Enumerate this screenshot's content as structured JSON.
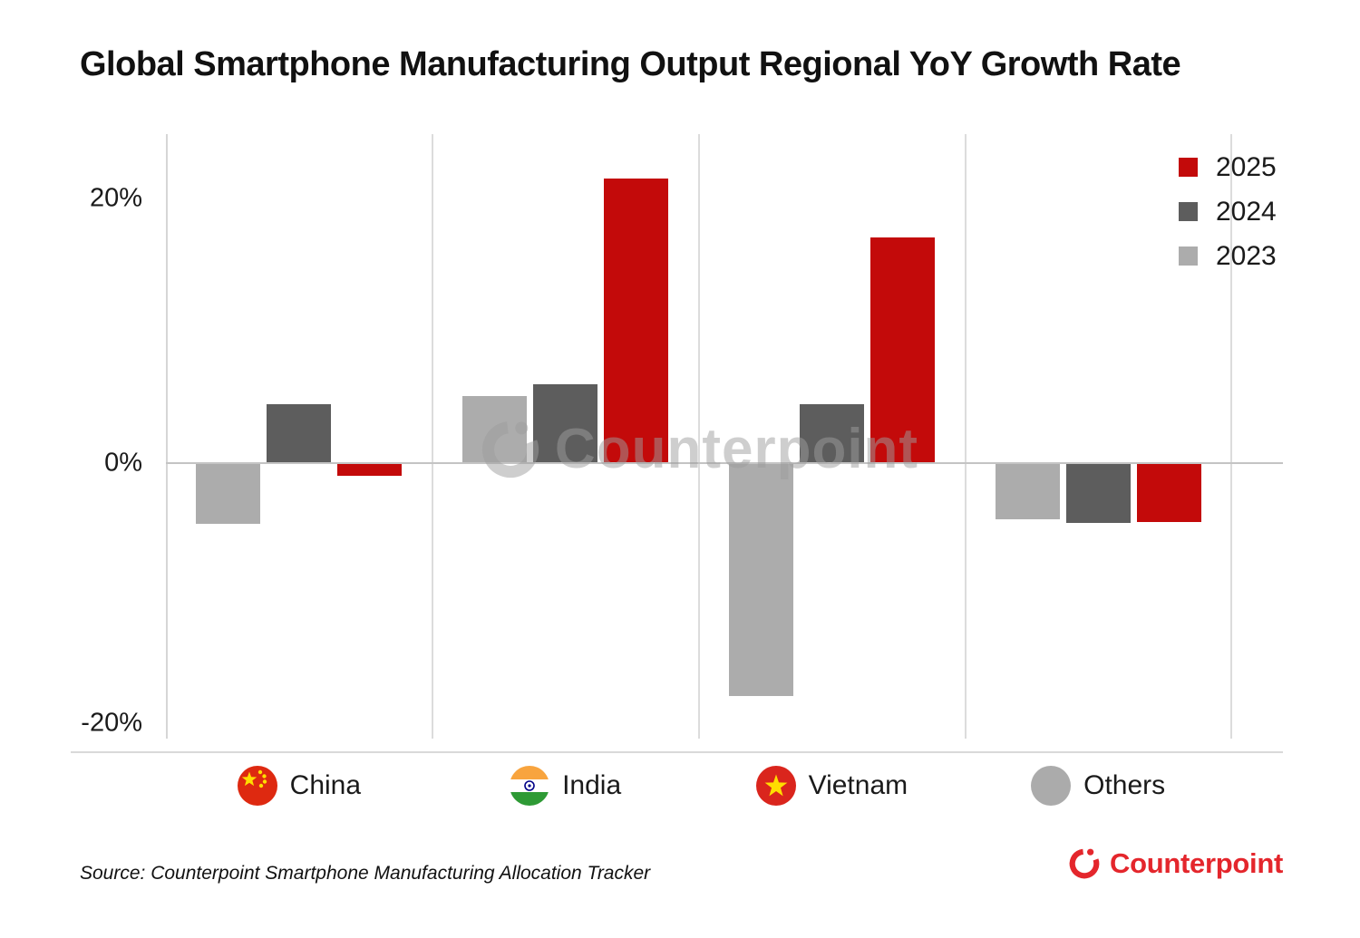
{
  "title": "Global Smartphone Manufacturing Output Regional YoY Growth Rate",
  "legend": {
    "items": [
      {
        "label": "2025",
        "color": "#c30a0a"
      },
      {
        "label": "2024",
        "color": "#5d5d5d"
      },
      {
        "label": "2023",
        "color": "#acacac"
      }
    ]
  },
  "watermark": {
    "text": "Counterpoint"
  },
  "footer": {
    "source": "Source: Counterpoint Smartphone Manufacturing Allocation Tracker",
    "brand": "Counterpoint",
    "brand_color": "#e4262c"
  },
  "chart_data": {
    "type": "bar",
    "title": "Global Smartphone Manufacturing Output Regional YoY Growth Rate",
    "categories": [
      "China",
      "India",
      "Vietnam",
      "Others"
    ],
    "series": [
      {
        "name": "2023",
        "color": "#acacac",
        "values": [
          -4.6,
          5.1,
          -17.7,
          -4.2
        ]
      },
      {
        "name": "2024",
        "color": "#5d5d5d",
        "values": [
          4.5,
          6.0,
          4.5,
          -4.5
        ]
      },
      {
        "name": "2025",
        "color": "#c30a0a",
        "values": [
          -0.9,
          21.7,
          17.2,
          -4.4
        ]
      }
    ],
    "yticks": [
      {
        "value": 20,
        "label": "20%"
      },
      {
        "value": 0,
        "label": "0%"
      },
      {
        "value": -20,
        "label": "-20%"
      }
    ],
    "ylim": [
      -22,
      25
    ],
    "unit": "%",
    "grid": "vertical-category-separators-only",
    "legend_position": "top-right",
    "legend_order": [
      "2025",
      "2024",
      "2023"
    ],
    "bar_order_within_group": [
      "2023",
      "2024",
      "2025"
    ],
    "category_icons": [
      "china-flag",
      "india-flag",
      "vietnam-flag",
      "gray-circle"
    ]
  }
}
